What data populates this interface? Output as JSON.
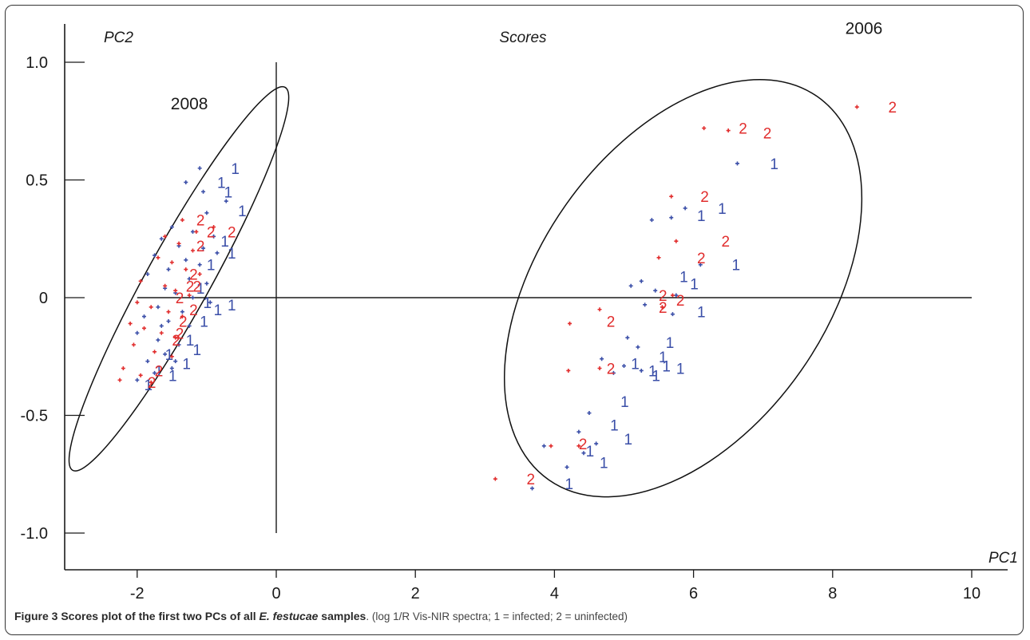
{
  "chart_data": {
    "type": "scatter",
    "title": "Scores",
    "xlabel": "PC1",
    "ylabel": "PC2",
    "xlim": [
      -2.75,
      10.5
    ],
    "ylim": [
      -1.12,
      1.2
    ],
    "x_ticks": [
      -2,
      0,
      2,
      4,
      6,
      8,
      10
    ],
    "y_ticks": [
      1.0,
      0.5,
      0,
      -0.5,
      -1.0
    ],
    "y_tick_labels": [
      "1.0",
      "0.5",
      "0",
      "-0.5",
      "-1.0"
    ],
    "grid": false,
    "legend": "none",
    "group_labels": [
      {
        "text": "2008",
        "x": -1.25,
        "y": 0.8
      },
      {
        "text": "2006",
        "x": 8.45,
        "y": 1.12
      }
    ],
    "ellipses": [
      {
        "name": "2008",
        "cx": -1.4,
        "cy": 0.08,
        "rx": 1.5,
        "ry": 0.5,
        "rotation_deg": -61
      },
      {
        "name": "2006",
        "cx": 5.85,
        "cy": 0.04,
        "rx": 6.6,
        "ry": 0.65,
        "rotation_deg": -55
      }
    ],
    "series": [
      {
        "marker_label": "1",
        "color": "#3b4fa8",
        "points": [
          [
            -1.1,
            0.55
          ],
          [
            -1.3,
            0.49
          ],
          [
            -1.05,
            0.45
          ],
          [
            -0.72,
            0.41
          ],
          [
            -1.0,
            0.36
          ],
          [
            -1.5,
            0.3
          ],
          [
            -1.2,
            0.28
          ],
          [
            -0.9,
            0.26
          ],
          [
            -1.65,
            0.25
          ],
          [
            -1.4,
            0.22
          ],
          [
            -1.05,
            0.21
          ],
          [
            -0.85,
            0.19
          ],
          [
            -1.75,
            0.18
          ],
          [
            -1.3,
            0.16
          ],
          [
            -1.1,
            0.14
          ],
          [
            -1.55,
            0.12
          ],
          [
            -1.85,
            0.1
          ],
          [
            -1.25,
            0.08
          ],
          [
            -1.0,
            0.06
          ],
          [
            -1.6,
            0.04
          ],
          [
            -1.45,
            0.02
          ],
          [
            -1.2,
            0.0
          ],
          [
            -0.95,
            -0.02
          ],
          [
            -1.7,
            -0.04
          ],
          [
            -1.35,
            -0.06
          ],
          [
            -1.9,
            -0.08
          ],
          [
            -1.55,
            -0.1
          ],
          [
            -1.25,
            -0.12
          ],
          [
            -2.0,
            -0.15
          ],
          [
            -1.7,
            -0.18
          ],
          [
            -1.4,
            -0.2
          ],
          [
            -1.6,
            -0.24
          ],
          [
            -1.85,
            -0.27
          ],
          [
            -1.5,
            -0.3
          ],
          [
            -1.75,
            -0.32
          ],
          [
            -2.0,
            -0.35
          ],
          [
            -1.45,
            -0.27
          ],
          [
            -1.65,
            -0.12
          ],
          [
            6.63,
            0.57
          ],
          [
            5.88,
            0.38
          ],
          [
            5.68,
            0.34
          ],
          [
            5.4,
            0.33
          ],
          [
            6.1,
            0.14
          ],
          [
            5.25,
            0.07
          ],
          [
            5.1,
            0.05
          ],
          [
            5.45,
            0.03
          ],
          [
            5.75,
            0.01
          ],
          [
            5.3,
            -0.03
          ],
          [
            5.7,
            -0.07
          ],
          [
            5.05,
            -0.17
          ],
          [
            5.2,
            -0.21
          ],
          [
            4.68,
            -0.26
          ],
          [
            5.0,
            -0.29
          ],
          [
            5.25,
            -0.31
          ],
          [
            4.85,
            -0.32
          ],
          [
            4.5,
            -0.49
          ],
          [
            4.35,
            -0.57
          ],
          [
            4.6,
            -0.62
          ],
          [
            4.42,
            -0.66
          ],
          [
            4.18,
            -0.72
          ],
          [
            3.68,
            -0.81
          ],
          [
            3.85,
            -0.63
          ]
        ],
        "label_points": [
          [
            -0.65,
            0.55
          ],
          [
            -0.85,
            0.49
          ],
          [
            -0.75,
            0.45
          ],
          [
            -0.55,
            0.37
          ],
          [
            -0.8,
            0.24
          ],
          [
            -0.7,
            0.19
          ],
          [
            -1.0,
            0.14
          ],
          [
            -1.15,
            0.04
          ],
          [
            -1.05,
            -0.02
          ],
          [
            -0.7,
            -0.03
          ],
          [
            -1.1,
            -0.1
          ],
          [
            -1.3,
            -0.18
          ],
          [
            -1.6,
            -0.24
          ],
          [
            -1.35,
            -0.28
          ],
          [
            -1.55,
            -0.33
          ],
          [
            -1.75,
            -0.31
          ],
          [
            -1.9,
            -0.37
          ],
          [
            -0.9,
            -0.05
          ],
          [
            -1.2,
            -0.22
          ],
          [
            7.1,
            0.57
          ],
          [
            6.05,
            0.35
          ],
          [
            6.35,
            0.38
          ],
          [
            6.55,
            0.14
          ],
          [
            5.8,
            0.09
          ],
          [
            5.95,
            0.06
          ],
          [
            6.05,
            -0.06
          ],
          [
            5.6,
            -0.19
          ],
          [
            5.5,
            -0.25
          ],
          [
            5.1,
            -0.28
          ],
          [
            5.35,
            -0.31
          ],
          [
            5.75,
            -0.3
          ],
          [
            5.4,
            -0.33
          ],
          [
            5.55,
            -0.29
          ],
          [
            4.95,
            -0.44
          ],
          [
            4.8,
            -0.54
          ],
          [
            5.0,
            -0.6
          ],
          [
            4.65,
            -0.7
          ],
          [
            4.15,
            -0.79
          ],
          [
            4.45,
            -0.65
          ]
        ]
      },
      {
        "marker_label": "2",
        "color": "#e12d2d",
        "points": [
          [
            -1.35,
            0.33
          ],
          [
            -1.15,
            0.28
          ],
          [
            -1.6,
            0.26
          ],
          [
            -0.9,
            0.3
          ],
          [
            -1.4,
            0.23
          ],
          [
            -1.2,
            0.2
          ],
          [
            -1.7,
            0.17
          ],
          [
            -1.5,
            0.15
          ],
          [
            -1.3,
            0.12
          ],
          [
            -1.1,
            0.1
          ],
          [
            -1.95,
            0.07
          ],
          [
            -1.6,
            0.05
          ],
          [
            -1.45,
            0.03
          ],
          [
            -1.25,
            0.01
          ],
          [
            -2.0,
            -0.02
          ],
          [
            -1.8,
            -0.04
          ],
          [
            -1.55,
            -0.06
          ],
          [
            -1.35,
            -0.08
          ],
          [
            -2.1,
            -0.11
          ],
          [
            -1.9,
            -0.13
          ],
          [
            -1.65,
            -0.15
          ],
          [
            -1.45,
            -0.17
          ],
          [
            -2.05,
            -0.2
          ],
          [
            -1.75,
            -0.23
          ],
          [
            -1.5,
            -0.25
          ],
          [
            -2.2,
            -0.3
          ],
          [
            -1.95,
            -0.33
          ],
          [
            -2.25,
            -0.35
          ],
          [
            -1.8,
            -0.36
          ],
          [
            8.35,
            0.81
          ],
          [
            6.15,
            0.72
          ],
          [
            6.5,
            0.71
          ],
          [
            5.68,
            0.43
          ],
          [
            5.75,
            0.24
          ],
          [
            5.5,
            0.17
          ],
          [
            5.7,
            0.01
          ],
          [
            5.55,
            -0.04
          ],
          [
            4.65,
            -0.05
          ],
          [
            4.22,
            -0.11
          ],
          [
            4.2,
            -0.31
          ],
          [
            4.65,
            -0.3
          ],
          [
            3.95,
            -0.63
          ],
          [
            4.35,
            -0.63
          ],
          [
            3.15,
            -0.77
          ]
        ],
        "label_points": [
          [
            -1.15,
            0.33
          ],
          [
            -0.7,
            0.28
          ],
          [
            -1.0,
            0.28
          ],
          [
            -1.15,
            0.22
          ],
          [
            -1.25,
            0.1
          ],
          [
            -1.3,
            0.05
          ],
          [
            -1.45,
            0.0
          ],
          [
            -1.2,
            0.05
          ],
          [
            -1.25,
            -0.05
          ],
          [
            -1.4,
            -0.1
          ],
          [
            -1.5,
            -0.18
          ],
          [
            -1.45,
            -0.15
          ],
          [
            -1.75,
            -0.31
          ],
          [
            -1.85,
            -0.36
          ],
          [
            8.8,
            0.81
          ],
          [
            6.65,
            0.72
          ],
          [
            7.0,
            0.7
          ],
          [
            6.1,
            0.43
          ],
          [
            6.4,
            0.24
          ],
          [
            6.05,
            0.17
          ],
          [
            5.75,
            -0.01
          ],
          [
            5.5,
            -0.04
          ],
          [
            5.5,
            0.01
          ],
          [
            4.75,
            -0.1
          ],
          [
            4.75,
            -0.3
          ],
          [
            4.35,
            -0.62
          ],
          [
            3.6,
            -0.77
          ]
        ]
      }
    ]
  },
  "figure_caption": {
    "bold_part": "Figure 3 Scores plot of the first two PCs of all ",
    "italic_part": "E. festucae",
    "bold_tail": " samples",
    "plain_part": ". (log 1/R Vis-NIR spectra; 1 = infected; 2 = uninfected)"
  }
}
